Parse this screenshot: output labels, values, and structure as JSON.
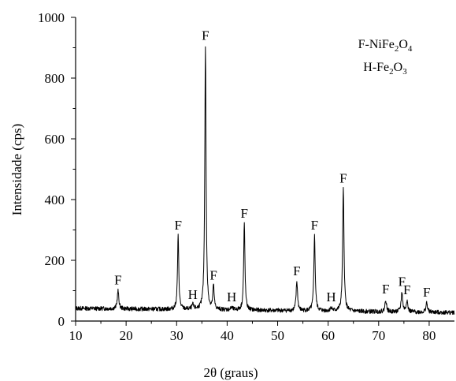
{
  "chart_data": {
    "type": "line",
    "xlabel": "2θ (graus)",
    "ylabel": "Intensidade (cps)",
    "xlim": [
      10,
      85
    ],
    "ylim": [
      0,
      1000
    ],
    "xticks": [
      10,
      20,
      30,
      40,
      50,
      60,
      70,
      80
    ],
    "yticks": [
      0,
      200,
      400,
      600,
      800,
      1000
    ],
    "grid": false,
    "legend": [
      {
        "key": "F",
        "sep": "-",
        "base": "NiFe",
        "sub1": "2",
        "mid": "O",
        "sub2": "4"
      },
      {
        "key": "H",
        "sep": "-",
        "base": "Fe",
        "sub1": "2",
        "mid": "O",
        "sub2": "3"
      }
    ],
    "legend_position": "top-right",
    "baseline": {
      "start": 42,
      "end": 28
    },
    "peaks": [
      {
        "x": 18.4,
        "y": 100,
        "w": 0.18,
        "label": "F"
      },
      {
        "x": 30.3,
        "y": 280,
        "w": 0.15,
        "label": "F"
      },
      {
        "x": 33.2,
        "y": 52,
        "w": 0.2,
        "label": "H"
      },
      {
        "x": 35.7,
        "y": 905,
        "w": 0.15,
        "label": "F"
      },
      {
        "x": 37.3,
        "y": 115,
        "w": 0.15,
        "label": "F"
      },
      {
        "x": 40.9,
        "y": 44,
        "w": 0.2,
        "label": "H"
      },
      {
        "x": 43.4,
        "y": 320,
        "w": 0.15,
        "label": "F"
      },
      {
        "x": 53.8,
        "y": 130,
        "w": 0.17,
        "label": "F"
      },
      {
        "x": 57.3,
        "y": 280,
        "w": 0.16,
        "label": "F"
      },
      {
        "x": 60.6,
        "y": 44,
        "w": 0.2,
        "label": "H"
      },
      {
        "x": 63.0,
        "y": 435,
        "w": 0.16,
        "label": "F"
      },
      {
        "x": 71.4,
        "y": 70,
        "w": 0.18,
        "label": "F"
      },
      {
        "x": 74.6,
        "y": 95,
        "w": 0.18,
        "label": "F"
      },
      {
        "x": 75.6,
        "y": 68,
        "w": 0.18,
        "label": "F"
      },
      {
        "x": 79.5,
        "y": 60,
        "w": 0.18,
        "label": "F"
      }
    ]
  }
}
